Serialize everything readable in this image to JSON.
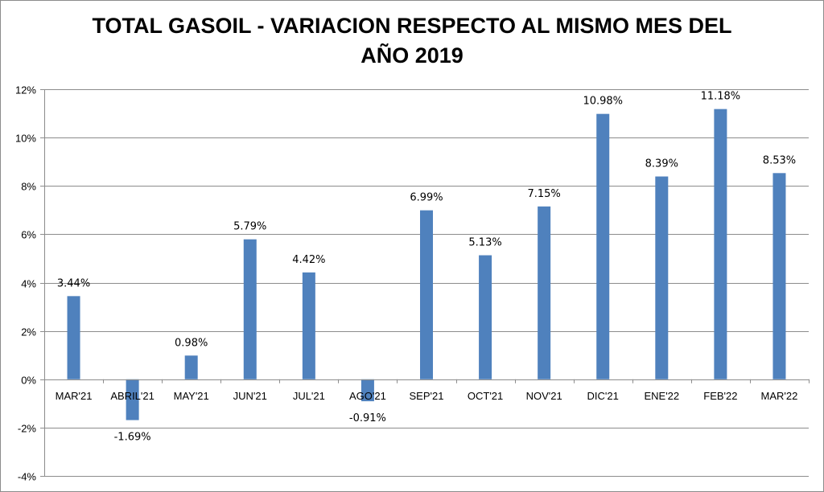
{
  "chart_data": {
    "type": "bar",
    "title_lines": [
      "TOTAL GASOIL - VARIACION RESPECTO AL MISMO MES DEL",
      "AÑO 2019"
    ],
    "xlabel": "",
    "ylabel": "",
    "categories": [
      "MAR'21",
      "ABRIL'21",
      "MAY'21",
      "JUN'21",
      "JUL'21",
      "AGO'21",
      "SEP'21",
      "OCT'21",
      "NOV'21",
      "DIC'21",
      "ENE'22",
      "FEB'22",
      "MAR'22"
    ],
    "values": [
      3.44,
      -1.69,
      0.98,
      5.79,
      4.42,
      -0.91,
      6.99,
      5.13,
      7.15,
      10.98,
      8.39,
      11.18,
      8.53
    ],
    "data_labels": [
      "3.44%",
      "-1.69%",
      "0.98%",
      "5.79%",
      "4.42%",
      "-0.91%",
      "6.99%",
      "5.13%",
      "7.15%",
      "10.98%",
      "8.39%",
      "11.18%",
      "8.53%"
    ],
    "ylim": [
      -4,
      12
    ],
    "y_ticks": [
      -4,
      -2,
      0,
      2,
      4,
      6,
      8,
      10,
      12
    ],
    "y_tick_labels": [
      "-4%",
      "-2%",
      "0%",
      "2%",
      "4%",
      "6%",
      "8%",
      "10%",
      "12%"
    ],
    "grid": true,
    "legend": "none",
    "bar_color": "#4f81bd",
    "grid_color": "#8c8c8c"
  }
}
